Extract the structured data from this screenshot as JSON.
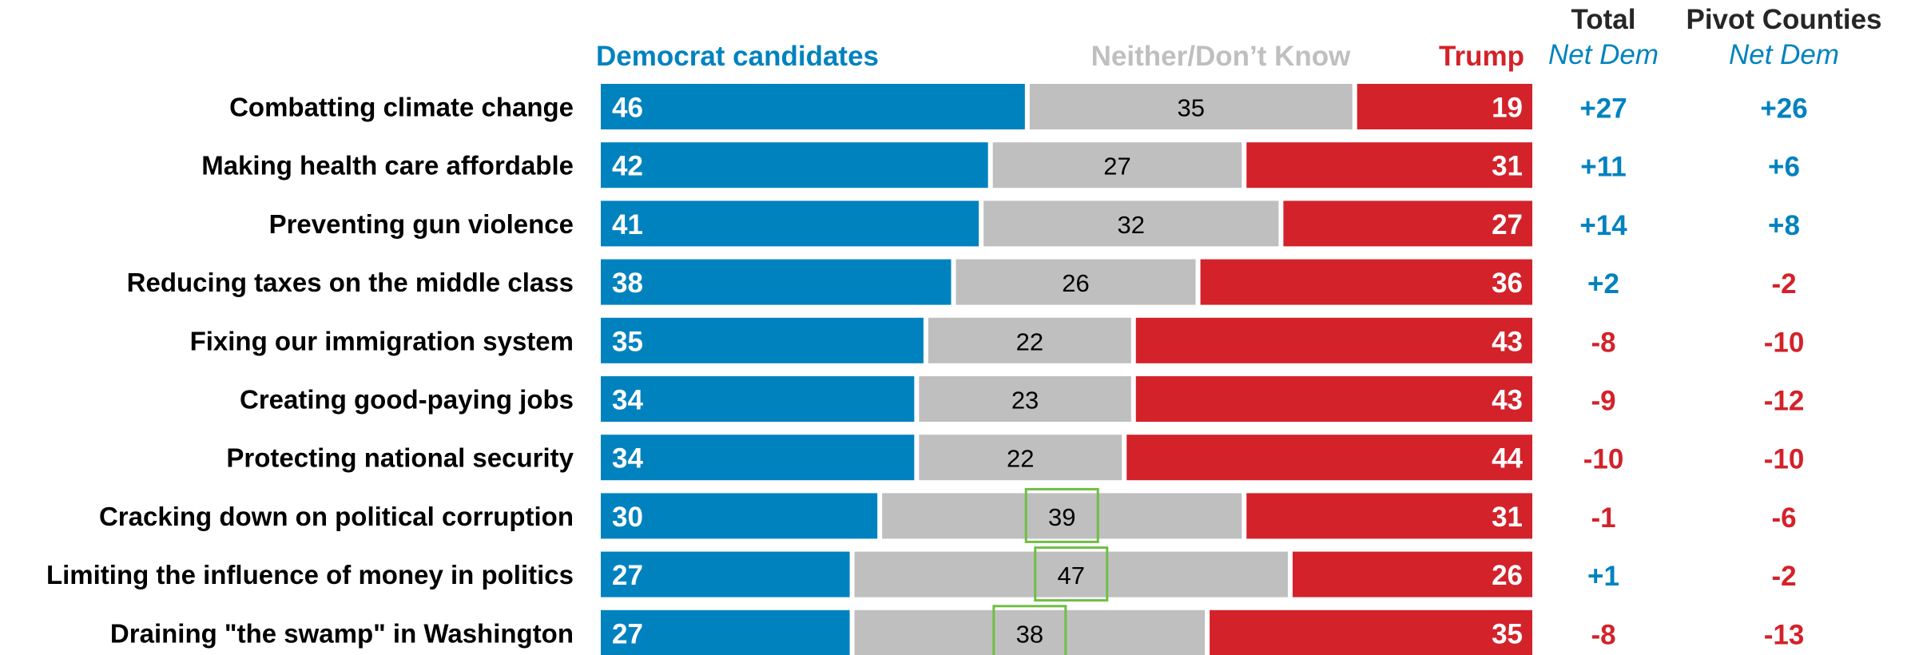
{
  "chart_data": {
    "type": "bar",
    "stacked": true,
    "orientation": "horizontal",
    "categories": [
      "Combatting climate change",
      "Making health care affordable",
      "Preventing gun violence",
      "Reducing taxes on the middle class",
      "Fixing our immigration system",
      "Creating good-paying jobs",
      "Protecting national security",
      "Cracking down on political corruption",
      "Limiting the influence of money in politics",
      "Draining \"the swamp\" in Washington"
    ],
    "series": [
      {
        "name": "Democrat candidates",
        "color": "#0082BF",
        "values": [
          46,
          42,
          41,
          38,
          35,
          34,
          34,
          30,
          27,
          27
        ]
      },
      {
        "name": "Neither/Don’t Know",
        "color": "#BFBFBF",
        "values": [
          35,
          27,
          32,
          26,
          22,
          23,
          22,
          39,
          47,
          38
        ]
      },
      {
        "name": "Trump",
        "color": "#D3222A",
        "values": [
          19,
          31,
          27,
          36,
          43,
          43,
          44,
          31,
          26,
          35
        ]
      }
    ],
    "highlighted_neither": [
      7,
      8,
      9
    ],
    "highlight_color": "#6FBE44",
    "side_columns": [
      {
        "title": "Total",
        "subtitle": "Net Dem",
        "values": [
          "+27",
          "+11",
          "+14",
          "+2",
          "-8",
          "-9",
          "-10",
          "-1",
          "+1",
          "-8"
        ]
      },
      {
        "title": "Pivot Counties",
        "subtitle": "Net Dem",
        "values": [
          "+26",
          "+6",
          "+8",
          "-2",
          "-10",
          "-12",
          "-10",
          "-6",
          "-2",
          "-13"
        ]
      }
    ],
    "colors": {
      "positive": "#0082BF",
      "negative": "#D3222A",
      "header_text": "#262626",
      "neither_header": "#BFBFBF"
    }
  }
}
